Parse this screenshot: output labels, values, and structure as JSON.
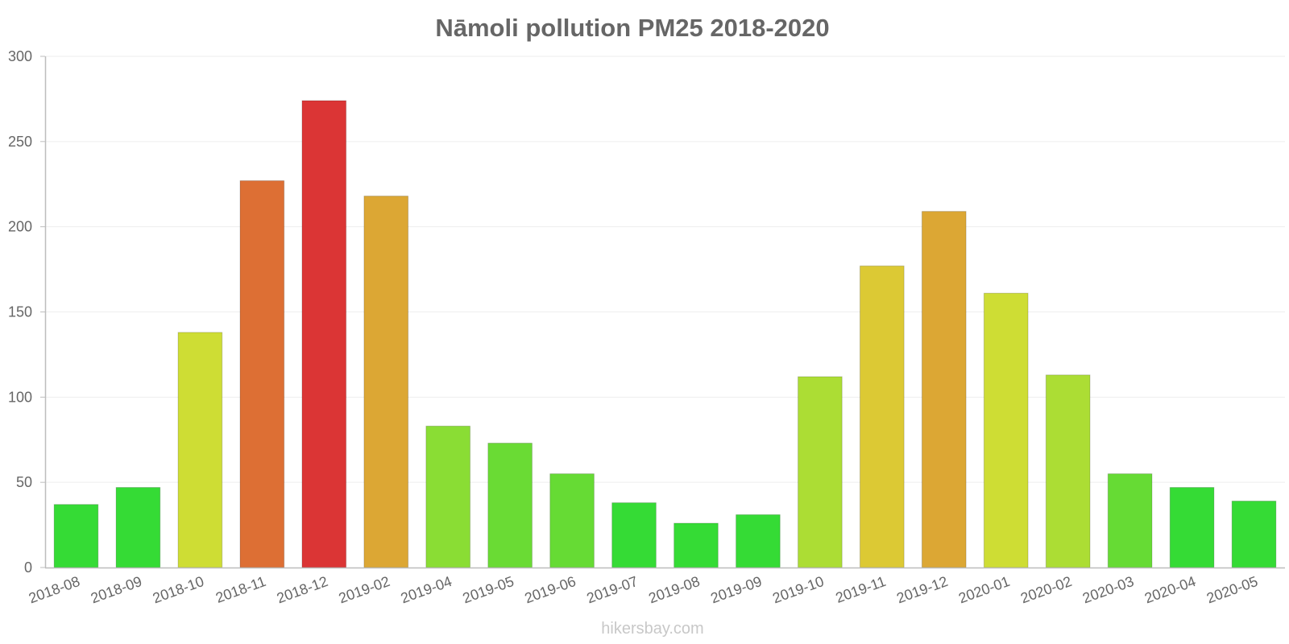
{
  "chart_data": {
    "type": "bar",
    "title": "Nāmoli pollution PM25 2018-2020",
    "xlabel": "",
    "ylabel": "",
    "ylim": [
      0,
      300
    ],
    "yticks": [
      "0",
      "50",
      "100",
      "150",
      "200",
      "250",
      "300"
    ],
    "grid": true,
    "categories": [
      "2018-08",
      "2018-09",
      "2018-10",
      "2018-11",
      "2018-12",
      "2019-02",
      "2019-04",
      "2019-05",
      "2019-06",
      "2019-07",
      "2019-08",
      "2019-09",
      "2019-10",
      "2019-11",
      "2019-12",
      "2020-01",
      "2020-02",
      "2020-03",
      "2020-04",
      "2020-05"
    ],
    "values": [
      37,
      47,
      138,
      227,
      274,
      218,
      83,
      73,
      55,
      38,
      26,
      31,
      112,
      177,
      209,
      161,
      113,
      55,
      47,
      39
    ],
    "colors": [
      "#35db35",
      "#35db35",
      "#cedd34",
      "#dd6f34",
      "#db3535",
      "#dca734",
      "#8add34",
      "#6adb34",
      "#66db34",
      "#35db35",
      "#35db35",
      "#35db35",
      "#acdd34",
      "#dcc934",
      "#dca734",
      "#cedd34",
      "#acdd34",
      "#66db34",
      "#35db35",
      "#35db35"
    ],
    "watermark": "hikersbay.com"
  }
}
